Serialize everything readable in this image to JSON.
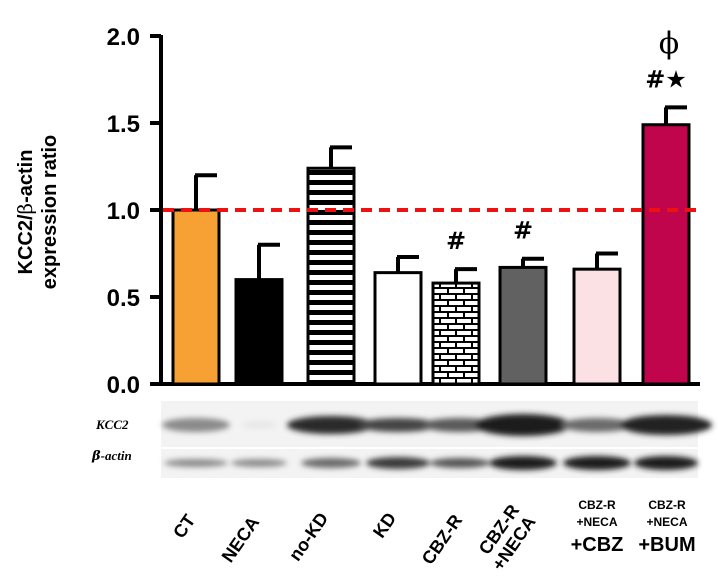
{
  "chart_data": {
    "type": "bar",
    "title": "",
    "ylabel_line1_prefix": "KCC2/",
    "ylabel_line1_beta": "β",
    "ylabel_line1_suffix": "-actin",
    "ylabel_line2": "expression ratio",
    "ylim": [
      0,
      2.0
    ],
    "yticks": [
      "0.0",
      "0.5",
      "1.0",
      "1.5",
      "2.0"
    ],
    "reference_line": 1.0,
    "categories": [
      "CT",
      "NECA",
      "no-KD",
      "KD",
      "CBZ-R",
      "CBZ-R +NECA",
      "CBZ-R +NECA +CBZ",
      "CBZ-R +NECA +BUM"
    ],
    "values": [
      1.0,
      0.6,
      1.24,
      0.64,
      0.58,
      0.67,
      0.66,
      1.49
    ],
    "errors": [
      0.2,
      0.2,
      0.12,
      0.09,
      0.08,
      0.05,
      0.09,
      0.1
    ],
    "fills": [
      "#F7A033",
      "#000000",
      "hstripes",
      "#ffffff",
      "bricks",
      "#616161",
      "#FCE1E4",
      "#C0054C"
    ],
    "significance": [
      "",
      "",
      "",
      "",
      "#",
      "#",
      "",
      "#★"
    ],
    "phi_marker": "ϕ",
    "blot_labels": {
      "kcc2": "KCC2",
      "actin_beta": "β",
      "actin_suffix": "-actin"
    },
    "x_tick_labels": {
      "rotated": [
        "CT",
        "NECA",
        "no-KD",
        "KD",
        "CBZ-R"
      ],
      "rotated_two_line": {
        "line1": "CBZ-R",
        "line2": "+NECA"
      },
      "stacked_cbz": {
        "line1": "CBZ-R",
        "line2": "+NECA",
        "line3": "+CBZ"
      },
      "stacked_bum": {
        "line1": "CBZ-R",
        "line2": "+NECA",
        "line3": "+BUM"
      }
    },
    "colors": {
      "reference_line": "#EE1111",
      "axis": "#000000"
    }
  }
}
